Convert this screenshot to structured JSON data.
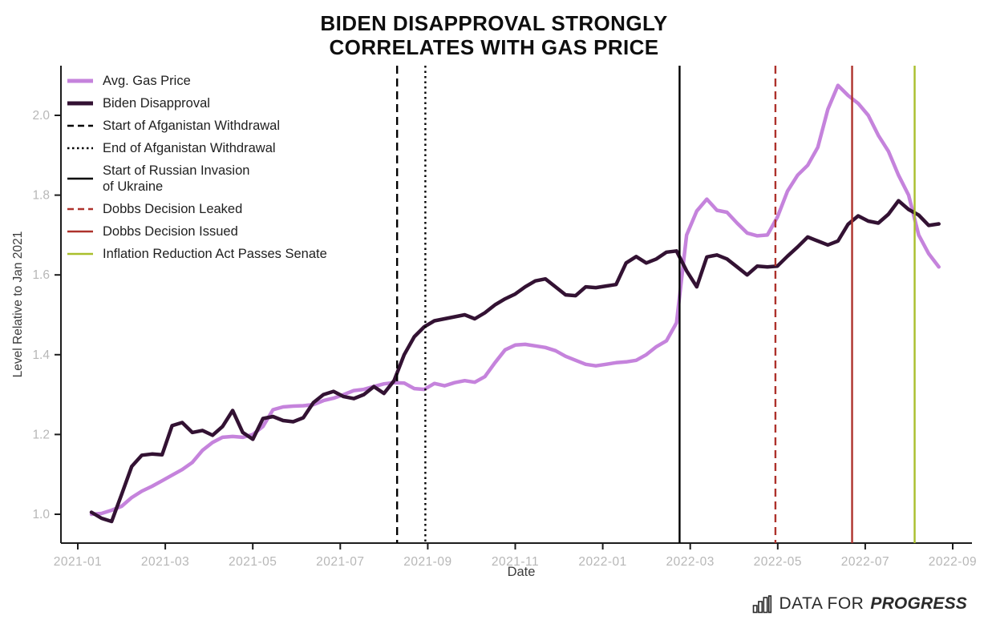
{
  "title": {
    "line1": "BIDEN DISAPPROVAL STRONGLY",
    "line2": "CORRELATES WITH GAS PRICE"
  },
  "footer": {
    "brand_prefix": "DATA FOR",
    "brand_bold": "PROGRESS",
    "icon": "bar-chart-icon"
  },
  "chart_data": {
    "type": "line",
    "title": "BIDEN DISAPPROVAL STRONGLY CORRELATES WITH GAS PRICE",
    "xlabel": "Date",
    "ylabel": "Level Relative to Jan 2021",
    "x_ticks": [
      "2021-01",
      "2021-03",
      "2021-05",
      "2021-07",
      "2021-09",
      "2021-11",
      "2022-01",
      "2022-03",
      "2022-05",
      "2022-07",
      "2022-09"
    ],
    "y_ticks": [
      "1.0",
      "1.2",
      "1.4",
      "1.6",
      "1.8",
      "2.0"
    ],
    "ylim": [
      0.88,
      2.14
    ],
    "x_start_date": "2021-01-10",
    "x_interval": "weekly",
    "grid": false,
    "legend_position": "upper left",
    "series": [
      {
        "name": "Avg. Gas Price",
        "color": "#c583dc",
        "style": "solid",
        "values": [
          1.0,
          1.002,
          1.01,
          1.02,
          1.042,
          1.058,
          1.07,
          1.084,
          1.098,
          1.112,
          1.13,
          1.16,
          1.18,
          1.193,
          1.195,
          1.193,
          1.2,
          1.22,
          1.262,
          1.269,
          1.271,
          1.272,
          1.275,
          1.285,
          1.291,
          1.3,
          1.31,
          1.313,
          1.32,
          1.327,
          1.33,
          1.329,
          1.315,
          1.313,
          1.328,
          1.322,
          1.33,
          1.335,
          1.331,
          1.345,
          1.38,
          1.412,
          1.424,
          1.426,
          1.422,
          1.418,
          1.41,
          1.396,
          1.386,
          1.376,
          1.372,
          1.376,
          1.38,
          1.382,
          1.386,
          1.4,
          1.42,
          1.435,
          1.48,
          1.7,
          1.76,
          1.79,
          1.762,
          1.757,
          1.73,
          1.705,
          1.698,
          1.7,
          1.745,
          1.81,
          1.85,
          1.875,
          1.92,
          2.015,
          2.075,
          2.05,
          2.03,
          2.0,
          1.95,
          1.91,
          1.85,
          1.8,
          1.7,
          1.653,
          1.62
        ]
      },
      {
        "name": "Biden Disapproval",
        "color": "#331233",
        "style": "solid",
        "values": [
          1.005,
          0.99,
          0.982,
          1.05,
          1.12,
          1.148,
          1.151,
          1.149,
          1.222,
          1.23,
          1.205,
          1.21,
          1.198,
          1.22,
          1.26,
          1.205,
          1.188,
          1.24,
          1.245,
          1.235,
          1.232,
          1.242,
          1.28,
          1.3,
          1.308,
          1.295,
          1.29,
          1.3,
          1.32,
          1.303,
          1.335,
          1.4,
          1.445,
          1.47,
          1.485,
          1.49,
          1.495,
          1.5,
          1.49,
          1.505,
          1.525,
          1.54,
          1.552,
          1.57,
          1.585,
          1.59,
          1.57,
          1.55,
          1.548,
          1.57,
          1.568,
          1.572,
          1.576,
          1.63,
          1.646,
          1.63,
          1.64,
          1.657,
          1.66,
          1.61,
          1.57,
          1.645,
          1.65,
          1.64,
          1.62,
          1.6,
          1.622,
          1.62,
          1.622,
          1.647,
          1.67,
          1.695,
          1.685,
          1.675,
          1.685,
          1.727,
          1.748,
          1.735,
          1.73,
          1.752,
          1.786,
          1.764,
          1.75,
          1.724,
          1.728
        ]
      }
    ],
    "events": [
      {
        "name": "Start of Afganistan Withdrawal",
        "legend_lines": [
          "Start of Afganistan Withdrawal"
        ],
        "color": "#000000",
        "style": "dashed",
        "week": 30.3,
        "x_date_estimate": "2021-08"
      },
      {
        "name": "End of Afganistan Withdrawal",
        "legend_lines": [
          "End of Afganistan Withdrawal"
        ],
        "color": "#000000",
        "style": "dotted",
        "week": 33.1,
        "x_date_estimate": "2021-08-30"
      },
      {
        "name": "Start of Russian Invasion of Ukraine",
        "legend_lines": [
          "Start of Russian Invasion",
          "of Ukraine"
        ],
        "color": "#000000",
        "style": "solid",
        "week": 58.3,
        "x_date_estimate": "2022-02-24"
      },
      {
        "name": "Dobbs Decision Leaked",
        "legend_lines": [
          "Dobbs Decision Leaked"
        ],
        "color": "#ae322c",
        "style": "dashed",
        "week": 67.8,
        "x_date_estimate": "2022-05-02"
      },
      {
        "name": "Dobbs Decision Issued",
        "legend_lines": [
          "Dobbs Decision Issued"
        ],
        "color": "#ae322c",
        "style": "solid",
        "week": 75.4,
        "x_date_estimate": "2022-06-24"
      },
      {
        "name": "Inflation Reduction Act Passes Senate",
        "legend_lines": [
          "Inflation Reduction Act Passes Senate"
        ],
        "color": "#a9bf2c",
        "style": "solid",
        "week": 81.6,
        "x_date_estimate": "2022-08-07"
      }
    ]
  },
  "style_colors": {
    "axis": "#1c1c1c",
    "tick_label": "#b7b7b7",
    "axis_title": "#3c3c3c",
    "legend_text": "#1f1f1f",
    "title_text": "#0e0e0e"
  }
}
